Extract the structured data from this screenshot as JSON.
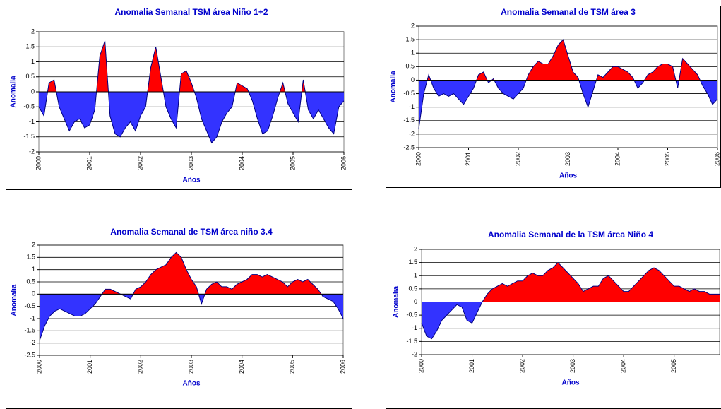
{
  "chart_data": [
    {
      "type": "area",
      "title": "Anomalia Semanal TSM área Niño 1+2",
      "x_label": "Años",
      "y_label": "Anomalia",
      "x": [
        2000,
        2000.1,
        2000.2,
        2000.3,
        2000.4,
        2000.5,
        2000.6,
        2000.7,
        2000.8,
        2000.9,
        2001,
        2001.1,
        2001.2,
        2001.3,
        2001.4,
        2001.5,
        2001.6,
        2001.7,
        2001.8,
        2001.9,
        2002,
        2002.1,
        2002.2,
        2002.3,
        2002.4,
        2002.5,
        2002.6,
        2002.7,
        2002.8,
        2002.9,
        2003,
        2003.1,
        2003.2,
        2003.3,
        2003.4,
        2003.5,
        2003.6,
        2003.7,
        2003.8,
        2003.9,
        2004,
        2004.1,
        2004.2,
        2004.3,
        2004.4,
        2004.5,
        2004.6,
        2004.7,
        2004.8,
        2004.9,
        2005,
        2005.1,
        2005.2,
        2005.3,
        2005.4,
        2005.5,
        2005.6,
        2005.7,
        2005.8,
        2005.9,
        2006
      ],
      "values": [
        -0.5,
        -0.8,
        0.3,
        0.4,
        -0.5,
        -0.9,
        -1.3,
        -1.0,
        -0.9,
        -1.2,
        -1.1,
        -0.6,
        1.2,
        1.7,
        -0.8,
        -1.4,
        -1.5,
        -1.2,
        -1.0,
        -1.3,
        -0.8,
        -0.5,
        0.8,
        1.5,
        0.5,
        -0.5,
        -0.9,
        -1.2,
        0.6,
        0.7,
        0.3,
        -0.2,
        -0.9,
        -1.3,
        -1.7,
        -1.5,
        -1.0,
        -0.7,
        -0.5,
        0.3,
        0.2,
        0.1,
        -0.3,
        -0.9,
        -1.4,
        -1.3,
        -0.8,
        -0.2,
        0.3,
        -0.4,
        -0.7,
        -1.0,
        0.4,
        -0.6,
        -0.9,
        -0.6,
        -0.9,
        -1.2,
        -1.4,
        -0.5,
        -0.3
      ],
      "color_above": "#ff0000",
      "color_below": "#3333ff",
      "line_color": "#000080",
      "xlim": [
        2000,
        2006
      ],
      "xticks": [
        2000,
        2001,
        2002,
        2003,
        2004,
        2005,
        2006
      ],
      "ylim": [
        -2,
        2
      ],
      "yticks": [
        -2,
        -1.5,
        -1,
        -0.5,
        0,
        0.5,
        1,
        1.5,
        2
      ],
      "grid": true
    },
    {
      "type": "area",
      "title": "Anomalia Semanal de TSM área 3",
      "x_label": "Años",
      "y_label": "Anomalia",
      "x": [
        2000,
        2000.1,
        2000.2,
        2000.3,
        2000.4,
        2000.5,
        2000.6,
        2000.7,
        2000.8,
        2000.9,
        2001,
        2001.1,
        2001.2,
        2001.3,
        2001.4,
        2001.5,
        2001.6,
        2001.7,
        2001.8,
        2001.9,
        2002,
        2002.1,
        2002.2,
        2002.3,
        2002.4,
        2002.5,
        2002.6,
        2002.7,
        2002.8,
        2002.9,
        2003,
        2003.1,
        2003.2,
        2003.3,
        2003.4,
        2003.5,
        2003.6,
        2003.7,
        2003.8,
        2003.9,
        2004,
        2004.1,
        2004.2,
        2004.3,
        2004.4,
        2004.5,
        2004.6,
        2004.7,
        2004.8,
        2004.9,
        2005,
        2005.1,
        2005.2,
        2005.3,
        2005.4,
        2005.5,
        2005.6,
        2005.7,
        2005.8,
        2005.9,
        2006
      ],
      "values": [
        -1.8,
        -0.5,
        0.2,
        -0.3,
        -0.6,
        -0.5,
        -0.6,
        -0.5,
        -0.7,
        -0.9,
        -0.6,
        -0.3,
        0.2,
        0.3,
        -0.1,
        0.05,
        -0.3,
        -0.5,
        -0.6,
        -0.7,
        -0.5,
        -0.3,
        0.2,
        0.5,
        0.7,
        0.6,
        0.6,
        0.9,
        1.3,
        1.5,
        0.9,
        0.3,
        0.1,
        -0.5,
        -1.0,
        -0.4,
        0.2,
        0.1,
        0.3,
        0.5,
        0.5,
        0.4,
        0.3,
        0.1,
        -0.3,
        -0.1,
        0.2,
        0.3,
        0.5,
        0.6,
        0.6,
        0.5,
        -0.3,
        0.8,
        0.6,
        0.4,
        0.2,
        -0.2,
        -0.5,
        -0.9,
        -0.7
      ],
      "color_above": "#ff0000",
      "color_below": "#3333ff",
      "line_color": "#000080",
      "xlim": [
        2000,
        2006
      ],
      "xticks": [
        2000,
        2001,
        2002,
        2003,
        2004,
        2005,
        2006
      ],
      "ylim": [
        -2.5,
        2
      ],
      "yticks": [
        -2.5,
        -2,
        -1.5,
        -1,
        -0.5,
        0,
        0.5,
        1,
        1.5,
        2
      ],
      "grid": true
    },
    {
      "type": "area",
      "title": "Anomalia Semanal de TSM área niño 3.4",
      "x_label": "Años",
      "y_label": "Anomalia",
      "x": [
        2000,
        2000.1,
        2000.2,
        2000.3,
        2000.4,
        2000.5,
        2000.6,
        2000.7,
        2000.8,
        2000.9,
        2001,
        2001.1,
        2001.2,
        2001.3,
        2001.4,
        2001.5,
        2001.6,
        2001.7,
        2001.8,
        2001.9,
        2002,
        2002.1,
        2002.2,
        2002.3,
        2002.4,
        2002.5,
        2002.6,
        2002.7,
        2002.8,
        2002.9,
        2003,
        2003.1,
        2003.2,
        2003.3,
        2003.4,
        2003.5,
        2003.6,
        2003.7,
        2003.8,
        2003.9,
        2004,
        2004.1,
        2004.2,
        2004.3,
        2004.4,
        2004.5,
        2004.6,
        2004.7,
        2004.8,
        2004.9,
        2005,
        2005.1,
        2005.2,
        2005.3,
        2005.4,
        2005.5,
        2005.6,
        2005.7,
        2005.8,
        2005.9,
        2006
      ],
      "values": [
        -1.9,
        -1.3,
        -0.9,
        -0.7,
        -0.6,
        -0.7,
        -0.8,
        -0.9,
        -0.9,
        -0.8,
        -0.6,
        -0.4,
        -0.1,
        0.2,
        0.2,
        0.1,
        0.0,
        -0.1,
        -0.2,
        0.2,
        0.3,
        0.5,
        0.8,
        1.0,
        1.1,
        1.2,
        1.5,
        1.7,
        1.5,
        1.0,
        0.6,
        0.3,
        -0.4,
        0.2,
        0.4,
        0.5,
        0.3,
        0.3,
        0.2,
        0.4,
        0.5,
        0.6,
        0.8,
        0.8,
        0.7,
        0.8,
        0.7,
        0.6,
        0.5,
        0.3,
        0.5,
        0.6,
        0.5,
        0.6,
        0.4,
        0.2,
        -0.1,
        -0.2,
        -0.3,
        -0.6,
        -1.0
      ],
      "color_above": "#ff0000",
      "color_below": "#3333ff",
      "line_color": "#000080",
      "xlim": [
        2000,
        2006
      ],
      "xticks": [
        2000,
        2001,
        2002,
        2003,
        2004,
        2005,
        2006
      ],
      "ylim": [
        -2.5,
        2
      ],
      "yticks": [
        -2.5,
        -2,
        -1.5,
        -1,
        -0.5,
        0,
        0.5,
        1,
        1.5,
        2
      ],
      "grid": true
    },
    {
      "type": "area",
      "title": "Anomalia Semanal de la TSM área Niño 4",
      "x_label": "Años",
      "y_label": "Anomalia",
      "x": [
        2000,
        2000.1,
        2000.2,
        2000.3,
        2000.4,
        2000.5,
        2000.6,
        2000.7,
        2000.8,
        2000.9,
        2001,
        2001.1,
        2001.2,
        2001.3,
        2001.4,
        2001.5,
        2001.6,
        2001.7,
        2001.8,
        2001.9,
        2002,
        2002.1,
        2002.2,
        2002.3,
        2002.4,
        2002.5,
        2002.6,
        2002.7,
        2002.8,
        2002.9,
        2003,
        2003.1,
        2003.2,
        2003.3,
        2003.4,
        2003.5,
        2003.6,
        2003.7,
        2003.8,
        2003.9,
        2004,
        2004.1,
        2004.2,
        2004.3,
        2004.4,
        2004.5,
        2004.6,
        2004.7,
        2004.8,
        2004.9,
        2005,
        2005.1,
        2005.2,
        2005.3,
        2005.4,
        2005.5,
        2005.6,
        2005.7,
        2005.8,
        2005.9
      ],
      "values": [
        -0.8,
        -1.3,
        -1.4,
        -1.1,
        -0.7,
        -0.5,
        -0.3,
        -0.1,
        -0.2,
        -0.7,
        -0.8,
        -0.4,
        0.0,
        0.3,
        0.5,
        0.6,
        0.7,
        0.6,
        0.7,
        0.8,
        0.8,
        1.0,
        1.1,
        1.0,
        1.0,
        1.2,
        1.3,
        1.5,
        1.3,
        1.1,
        0.9,
        0.7,
        0.4,
        0.5,
        0.6,
        0.6,
        0.9,
        1.0,
        0.8,
        0.6,
        0.4,
        0.4,
        0.6,
        0.8,
        1.0,
        1.2,
        1.3,
        1.2,
        1.0,
        0.8,
        0.6,
        0.6,
        0.5,
        0.4,
        0.5,
        0.4,
        0.4,
        0.3,
        0.3,
        0.3
      ],
      "color_above": "#ff0000",
      "color_below": "#3333ff",
      "line_color": "#000080",
      "xlim": [
        2000,
        2005.9
      ],
      "xticks": [
        2000,
        2001,
        2002,
        2003,
        2004,
        2005
      ],
      "ylim": [
        -2,
        2
      ],
      "yticks": [
        -2,
        -1.5,
        -1,
        -0.5,
        0,
        0.5,
        1,
        1.5,
        2
      ],
      "grid": true
    }
  ]
}
